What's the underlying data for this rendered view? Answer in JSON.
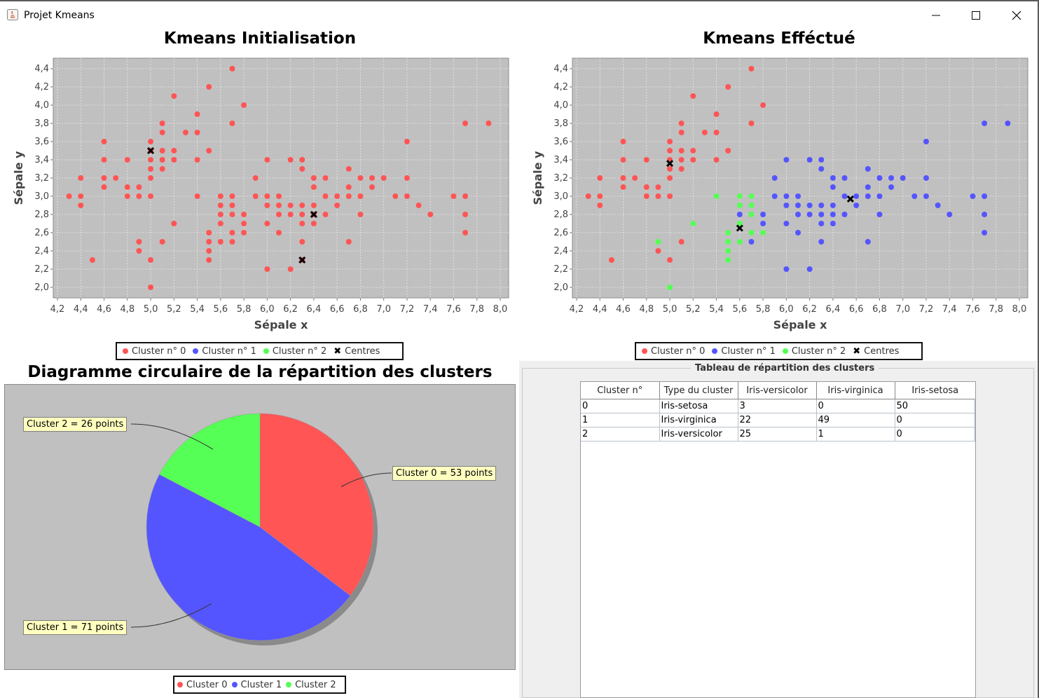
{
  "window": {
    "title": "Projet Kmeans",
    "controls": {
      "minimize": "minimize-icon",
      "maximize": "maximize-icon",
      "close": "close-icon"
    }
  },
  "colors": {
    "cluster0": "#ff5555",
    "cluster1": "#5555ff",
    "cluster2": "#55ff55",
    "centres": "#000000",
    "plot_bg": "#c0c0c0"
  },
  "legend": {
    "labels": [
      "Cluster n° 0",
      "Cluster n° 1",
      "Cluster n° 2",
      "Centres"
    ]
  },
  "pie_legend": {
    "labels": [
      "Cluster 0",
      "Cluster 1",
      "Cluster 2"
    ]
  },
  "pie_labels": [
    "Cluster 0 = 53 points",
    "Cluster 1 = 71 points",
    "Cluster 2 = 26 points"
  ],
  "table": {
    "title": "Tableau de répartition des clusters",
    "headers": [
      "Cluster n°",
      "Type du cluster",
      "Iris-versicolor",
      "Iris-virginica",
      "Iris-setosa"
    ],
    "rows": [
      [
        "0",
        "Iris-setosa",
        "3",
        "0",
        "50"
      ],
      [
        "1",
        "Iris-virginica",
        "22",
        "49",
        "0"
      ],
      [
        "2",
        "Iris-versicolor",
        "25",
        "1",
        "0"
      ]
    ]
  },
  "chart_data": [
    {
      "type": "scatter",
      "title": "Kmeans Initialisation",
      "xlabel": "Sépale x",
      "ylabel": "Sépale y",
      "xlim": [
        4.2,
        8.0
      ],
      "ylim": [
        2.0,
        4.4
      ],
      "x_ticks": [
        "4,2",
        "4,4",
        "4,6",
        "4,8",
        "5,0",
        "5,2",
        "5,4",
        "5,6",
        "5,8",
        "6,0",
        "6,2",
        "6,4",
        "6,6",
        "6,8",
        "7,0",
        "7,2",
        "7,4",
        "7,6",
        "7,8",
        "8,0"
      ],
      "y_ticks": [
        "2,0",
        "2,2",
        "2,4",
        "2,6",
        "2,8",
        "3,0",
        "3,2",
        "3,4",
        "3,6",
        "3,8",
        "4,0",
        "4,2",
        "4,4"
      ],
      "grid": true,
      "legend_position": "bottom",
      "series": [
        {
          "name": "Cluster n° 0",
          "color": "#ff5555",
          "points": [
            [
              4.3,
              3.0
            ],
            [
              4.4,
              2.9
            ],
            [
              4.4,
              3.0
            ],
            [
              4.4,
              3.2
            ],
            [
              4.5,
              2.3
            ],
            [
              4.6,
              3.1
            ],
            [
              4.6,
              3.2
            ],
            [
              4.6,
              3.4
            ],
            [
              4.6,
              3.6
            ],
            [
              4.7,
              3.2
            ],
            [
              4.8,
              3.0
            ],
            [
              4.8,
              3.1
            ],
            [
              4.8,
              3.4
            ],
            [
              4.9,
              2.4
            ],
            [
              4.9,
              2.5
            ],
            [
              4.9,
              3.0
            ],
            [
              4.9,
              3.1
            ],
            [
              5.0,
              2.0
            ],
            [
              5.0,
              2.3
            ],
            [
              5.0,
              3.0
            ],
            [
              5.0,
              3.2
            ],
            [
              5.0,
              3.3
            ],
            [
              5.0,
              3.4
            ],
            [
              5.0,
              3.5
            ],
            [
              5.0,
              3.6
            ],
            [
              5.1,
              2.5
            ],
            [
              5.1,
              3.3
            ],
            [
              5.1,
              3.4
            ],
            [
              5.1,
              3.5
            ],
            [
              5.1,
              3.7
            ],
            [
              5.1,
              3.8
            ],
            [
              5.2,
              2.7
            ],
            [
              5.2,
              3.4
            ],
            [
              5.2,
              3.5
            ],
            [
              5.2,
              4.1
            ],
            [
              5.3,
              3.7
            ],
            [
              5.4,
              3.0
            ],
            [
              5.4,
              3.4
            ],
            [
              5.4,
              3.7
            ],
            [
              5.4,
              3.9
            ],
            [
              5.5,
              2.3
            ],
            [
              5.5,
              2.4
            ],
            [
              5.5,
              2.5
            ],
            [
              5.5,
              2.6
            ],
            [
              5.5,
              3.5
            ],
            [
              5.5,
              4.2
            ],
            [
              5.6,
              2.5
            ],
            [
              5.6,
              2.7
            ],
            [
              5.6,
              2.8
            ],
            [
              5.6,
              2.9
            ],
            [
              5.6,
              3.0
            ],
            [
              5.7,
              2.5
            ],
            [
              5.7,
              2.6
            ],
            [
              5.7,
              2.8
            ],
            [
              5.7,
              2.9
            ],
            [
              5.7,
              3.0
            ],
            [
              5.7,
              3.8
            ],
            [
              5.7,
              4.4
            ],
            [
              5.8,
              2.6
            ],
            [
              5.8,
              2.7
            ],
            [
              5.8,
              2.8
            ],
            [
              5.8,
              4.0
            ],
            [
              5.9,
              3.0
            ],
            [
              5.9,
              3.2
            ],
            [
              6.0,
              2.2
            ],
            [
              6.0,
              2.7
            ],
            [
              6.0,
              2.9
            ],
            [
              6.0,
              3.0
            ],
            [
              6.0,
              3.4
            ],
            [
              6.1,
              2.6
            ],
            [
              6.1,
              2.8
            ],
            [
              6.1,
              2.9
            ],
            [
              6.1,
              3.0
            ],
            [
              6.2,
              2.2
            ],
            [
              6.2,
              2.8
            ],
            [
              6.2,
              2.9
            ],
            [
              6.2,
              3.4
            ],
            [
              6.3,
              2.3
            ],
            [
              6.3,
              2.5
            ],
            [
              6.3,
              2.7
            ],
            [
              6.3,
              2.8
            ],
            [
              6.3,
              2.9
            ],
            [
              6.3,
              3.3
            ],
            [
              6.3,
              3.4
            ],
            [
              6.4,
              2.7
            ],
            [
              6.4,
              2.8
            ],
            [
              6.4,
              2.9
            ],
            [
              6.4,
              3.1
            ],
            [
              6.4,
              3.2
            ],
            [
              6.5,
              2.8
            ],
            [
              6.5,
              3.0
            ],
            [
              6.5,
              3.2
            ],
            [
              6.6,
              2.9
            ],
            [
              6.6,
              3.0
            ],
            [
              6.7,
              2.5
            ],
            [
              6.7,
              3.0
            ],
            [
              6.7,
              3.1
            ],
            [
              6.7,
              3.3
            ],
            [
              6.8,
              2.8
            ],
            [
              6.8,
              3.0
            ],
            [
              6.8,
              3.2
            ],
            [
              6.9,
              3.1
            ],
            [
              6.9,
              3.2
            ],
            [
              7.0,
              3.2
            ],
            [
              7.1,
              3.0
            ],
            [
              7.2,
              3.0
            ],
            [
              7.2,
              3.2
            ],
            [
              7.2,
              3.6
            ],
            [
              7.3,
              2.9
            ],
            [
              7.4,
              2.8
            ],
            [
              7.6,
              3.0
            ],
            [
              7.7,
              2.6
            ],
            [
              7.7,
              2.8
            ],
            [
              7.7,
              3.0
            ],
            [
              7.7,
              3.8
            ],
            [
              7.9,
              3.8
            ]
          ]
        }
      ],
      "centres": [
        [
          5.0,
          3.5
        ],
        [
          6.4,
          2.8
        ],
        [
          6.3,
          2.3
        ]
      ]
    },
    {
      "type": "scatter",
      "title": "Kmeans Efféctué",
      "xlabel": "Sépale x",
      "ylabel": "Sépale y",
      "xlim": [
        4.2,
        8.0
      ],
      "ylim": [
        2.0,
        4.4
      ],
      "x_ticks": [
        "4,2",
        "4,4",
        "4,6",
        "4,8",
        "5,0",
        "5,2",
        "5,4",
        "5,6",
        "5,8",
        "6,0",
        "6,2",
        "6,4",
        "6,6",
        "6,8",
        "7,0",
        "7,2",
        "7,4",
        "7,6",
        "7,8",
        "8,0"
      ],
      "y_ticks": [
        "2,0",
        "2,2",
        "2,4",
        "2,6",
        "2,8",
        "3,0",
        "3,2",
        "3,4",
        "3,6",
        "3,8",
        "4,0",
        "4,2",
        "4,4"
      ],
      "grid": true,
      "legend_position": "bottom",
      "series": [
        {
          "name": "Cluster n° 0",
          "color": "#ff5555",
          "points": [
            [
              4.3,
              3.0
            ],
            [
              4.4,
              2.9
            ],
            [
              4.4,
              3.0
            ],
            [
              4.4,
              3.2
            ],
            [
              4.5,
              2.3
            ],
            [
              4.6,
              3.1
            ],
            [
              4.6,
              3.2
            ],
            [
              4.6,
              3.4
            ],
            [
              4.6,
              3.6
            ],
            [
              4.7,
              3.2
            ],
            [
              4.8,
              3.0
            ],
            [
              4.8,
              3.1
            ],
            [
              4.8,
              3.4
            ],
            [
              4.9,
              2.4
            ],
            [
              4.9,
              3.0
            ],
            [
              4.9,
              3.1
            ],
            [
              5.0,
              2.3
            ],
            [
              5.0,
              3.0
            ],
            [
              5.0,
              3.2
            ],
            [
              5.0,
              3.3
            ],
            [
              5.0,
              3.4
            ],
            [
              5.0,
              3.5
            ],
            [
              5.0,
              3.6
            ],
            [
              5.1,
              2.5
            ],
            [
              5.1,
              3.3
            ],
            [
              5.1,
              3.4
            ],
            [
              5.1,
              3.5
            ],
            [
              5.1,
              3.7
            ],
            [
              5.1,
              3.8
            ],
            [
              5.2,
              3.4
            ],
            [
              5.2,
              3.5
            ],
            [
              5.2,
              4.1
            ],
            [
              5.3,
              3.7
            ],
            [
              5.4,
              3.4
            ],
            [
              5.4,
              3.7
            ],
            [
              5.4,
              3.9
            ],
            [
              5.5,
              3.5
            ],
            [
              5.5,
              4.2
            ],
            [
              5.7,
              3.8
            ],
            [
              5.7,
              4.4
            ],
            [
              5.8,
              4.0
            ]
          ]
        },
        {
          "name": "Cluster n° 1",
          "color": "#5555ff",
          "points": [
            [
              5.6,
              2.8
            ],
            [
              5.7,
              2.5
            ],
            [
              5.8,
              2.7
            ],
            [
              5.8,
              2.8
            ],
            [
              5.9,
              3.0
            ],
            [
              5.9,
              3.2
            ],
            [
              6.0,
              2.2
            ],
            [
              6.0,
              2.7
            ],
            [
              6.0,
              2.9
            ],
            [
              6.0,
              3.0
            ],
            [
              6.0,
              3.4
            ],
            [
              6.1,
              2.6
            ],
            [
              6.1,
              2.8
            ],
            [
              6.1,
              2.9
            ],
            [
              6.1,
              3.0
            ],
            [
              6.2,
              2.2
            ],
            [
              6.2,
              2.8
            ],
            [
              6.2,
              2.9
            ],
            [
              6.2,
              3.4
            ],
            [
              6.3,
              2.5
            ],
            [
              6.3,
              2.7
            ],
            [
              6.3,
              2.8
            ],
            [
              6.3,
              2.9
            ],
            [
              6.3,
              3.3
            ],
            [
              6.3,
              3.4
            ],
            [
              6.4,
              2.7
            ],
            [
              6.4,
              2.8
            ],
            [
              6.4,
              2.9
            ],
            [
              6.4,
              3.1
            ],
            [
              6.4,
              3.2
            ],
            [
              6.5,
              2.8
            ],
            [
              6.5,
              3.0
            ],
            [
              6.5,
              3.2
            ],
            [
              6.6,
              2.9
            ],
            [
              6.6,
              3.0
            ],
            [
              6.7,
              2.5
            ],
            [
              6.7,
              3.0
            ],
            [
              6.7,
              3.1
            ],
            [
              6.7,
              3.3
            ],
            [
              6.8,
              2.8
            ],
            [
              6.8,
              3.0
            ],
            [
              6.8,
              3.2
            ],
            [
              6.9,
              3.1
            ],
            [
              6.9,
              3.2
            ],
            [
              7.0,
              3.2
            ],
            [
              7.1,
              3.0
            ],
            [
              7.2,
              3.0
            ],
            [
              7.2,
              3.2
            ],
            [
              7.2,
              3.6
            ],
            [
              7.3,
              2.9
            ],
            [
              7.4,
              2.8
            ],
            [
              7.6,
              3.0
            ],
            [
              7.7,
              2.6
            ],
            [
              7.7,
              2.8
            ],
            [
              7.7,
              3.0
            ],
            [
              7.7,
              3.8
            ],
            [
              7.9,
              3.8
            ]
          ]
        },
        {
          "name": "Cluster n° 2",
          "color": "#55ff55",
          "points": [
            [
              4.9,
              2.5
            ],
            [
              5.0,
              2.0
            ],
            [
              5.2,
              2.7
            ],
            [
              5.4,
              3.0
            ],
            [
              5.5,
              2.3
            ],
            [
              5.5,
              2.4
            ],
            [
              5.5,
              2.5
            ],
            [
              5.5,
              2.6
            ],
            [
              5.6,
              2.5
            ],
            [
              5.6,
              2.7
            ],
            [
              5.6,
              2.9
            ],
            [
              5.6,
              3.0
            ],
            [
              5.7,
              2.6
            ],
            [
              5.7,
              2.8
            ],
            [
              5.7,
              2.9
            ],
            [
              5.7,
              3.0
            ],
            [
              5.8,
              2.6
            ]
          ]
        }
      ],
      "centres": [
        [
          5.0,
          3.36
        ],
        [
          5.6,
          2.65
        ],
        [
          6.55,
          2.97
        ]
      ]
    },
    {
      "type": "pie",
      "title": "Diagramme circulaire de la répartition des clusters",
      "categories": [
        "Cluster 0",
        "Cluster 1",
        "Cluster 2"
      ],
      "values": [
        53,
        71,
        26
      ],
      "colors": [
        "#ff5555",
        "#5555ff",
        "#55ff55"
      ],
      "legend_position": "bottom"
    }
  ]
}
